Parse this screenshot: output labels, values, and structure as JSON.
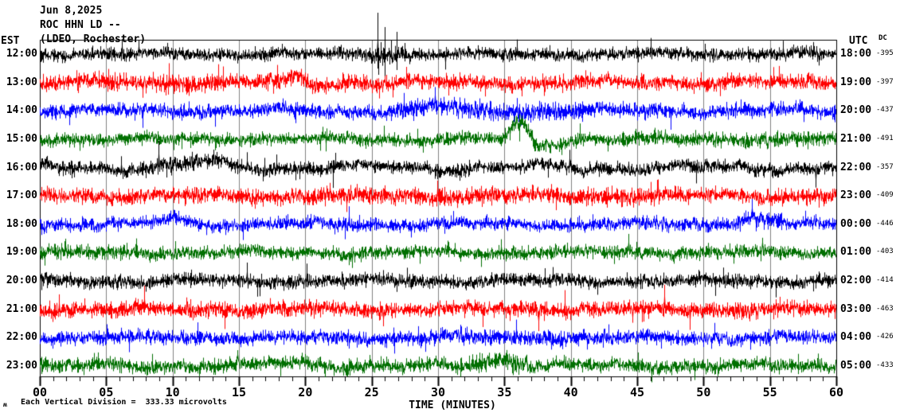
{
  "header": {
    "date": "Jun 8,2025",
    "station": "ROC HHN LD --",
    "network": "(LDEO, Rochester)",
    "left_tz": "EST",
    "right_tz": "UTC",
    "dc_header": "DC"
  },
  "footer": {
    "scale_note": "Each Vertical Division =  333.33 microvolts",
    "corner_mark": "ʍ"
  },
  "chart_data": {
    "type": "line",
    "kind": "seismogram-helicorder",
    "title": "ROC HHN LD -- (LDEO, Rochester) Jun 8,2025",
    "xaxis": {
      "min": 0,
      "max": 60,
      "major_step": 5,
      "minor_step": 1,
      "title": "TIME (MINUTES)",
      "tick_labels": [
        "00",
        "05",
        "10",
        "15",
        "20",
        "25",
        "30",
        "35",
        "40",
        "45",
        "50",
        "55",
        "60"
      ]
    },
    "grid": true,
    "grid_color": "#808080",
    "border_color": "#000000",
    "trace_color_cycle": [
      "#000000",
      "#ff0000",
      "#0000ff",
      "#006f00"
    ],
    "rows": [
      {
        "est": "12:00",
        "utc": "18:00",
        "dc": "-395",
        "color": "#000000",
        "amp": 5.2,
        "wander": 1.5,
        "bursts": [
          [
            25,
            27.8,
            1.35
          ]
        ],
        "bumps": [],
        "spikes": [
          [
            16.2,
            10
          ],
          [
            25.45,
            52
          ],
          [
            25.5,
            -26
          ],
          [
            25.95,
            34
          ],
          [
            26.0,
            -30
          ],
          [
            26.45,
            18
          ],
          [
            26.85,
            28
          ],
          [
            26.9,
            -20
          ],
          [
            27.45,
            14
          ]
        ]
      },
      {
        "est": "13:00",
        "utc": "19:00",
        "dc": "-397",
        "color": "#ff0000",
        "amp": 6.0,
        "wander": 2.0,
        "bursts": [
          [
            0,
            15,
            1.2
          ],
          [
            17,
            20,
            1.25
          ]
        ],
        "bumps": [
          [
            19.4,
            11,
            0.5
          ],
          [
            20.8,
            -4,
            0.9
          ]
        ],
        "spikes": [
          [
            18.9,
            14
          ],
          [
            19.7,
            12
          ]
        ]
      },
      {
        "est": "14:00",
        "utc": "20:00",
        "dc": "-437",
        "color": "#0000ff",
        "amp": 5.8,
        "wander": 2.0,
        "bursts": [
          [
            27,
            41,
            1.3
          ]
        ],
        "bumps": [
          [
            29.8,
            5,
            1.2
          ]
        ],
        "spikes": [
          [
            13.2,
            -20
          ],
          [
            34.9,
            10
          ]
        ]
      },
      {
        "est": "15:00",
        "utc": "21:00",
        "dc": "-491",
        "color": "#006f00",
        "amp": 5.2,
        "wander": 1.5,
        "bursts": [
          [
            35.4,
            37.2,
            1.3
          ],
          [
            46,
            60,
            1.15
          ]
        ],
        "bumps": [
          [
            36.15,
            24,
            0.55
          ],
          [
            37.8,
            -7,
            1.3
          ]
        ],
        "spikes": [
          [
            13.2,
            -14
          ],
          [
            36.1,
            8
          ]
        ]
      },
      {
        "est": "16:00",
        "utc": "22:00",
        "dc": "-357",
        "color": "#000000",
        "amp": 5.4,
        "wander": 3.2,
        "bursts": [
          [
            9,
            14,
            1.25
          ]
        ],
        "bumps": [
          [
            12.3,
            6,
            1.4
          ]
        ],
        "spikes": []
      },
      {
        "est": "17:00",
        "utc": "23:00",
        "dc": "-409",
        "color": "#ff0000",
        "amp": 6.4,
        "wander": 1.6,
        "bursts": [
          [
            24,
            46,
            1.12
          ]
        ],
        "bumps": [],
        "spikes": [
          [
            41.3,
            12
          ]
        ]
      },
      {
        "est": "18:00",
        "utc": "00:00",
        "dc": "-446",
        "color": "#0000ff",
        "amp": 5.4,
        "wander": 2.0,
        "bursts": [
          [
            52,
            55.5,
            1.3
          ]
        ],
        "bumps": [
          [
            10,
            7,
            1.0
          ],
          [
            53.6,
            9,
            1.1
          ]
        ],
        "spikes": [
          [
            30.5,
            -12
          ]
        ]
      },
      {
        "est": "19:00",
        "utc": "01:00",
        "dc": "-403",
        "color": "#006f00",
        "amp": 5.4,
        "wander": 1.6,
        "bursts": [
          [
            0,
            9,
            1.12
          ]
        ],
        "bumps": [],
        "spikes": [
          [
            3.5,
            8
          ],
          [
            28.6,
            -14
          ]
        ]
      },
      {
        "est": "20:00",
        "utc": "02:00",
        "dc": "-414",
        "color": "#000000",
        "amp": 5.4,
        "wander": 1.6,
        "bursts": [],
        "bumps": [],
        "spikes": [
          [
            22.8,
            9
          ]
        ]
      },
      {
        "est": "21:00",
        "utc": "03:00",
        "dc": "-463",
        "color": "#ff0000",
        "amp": 6.4,
        "wander": 1.6,
        "bursts": [],
        "bumps": [],
        "spikes": [
          [
            41.8,
            10
          ],
          [
            45.35,
            -16
          ],
          [
            45.85,
            -12
          ]
        ]
      },
      {
        "est": "22:00",
        "utc": "04:00",
        "dc": "-426",
        "color": "#0000ff",
        "amp": 5.8,
        "wander": 1.6,
        "bursts": [
          [
            32,
            40,
            1.2
          ]
        ],
        "bumps": [],
        "spikes": [
          [
            9.3,
            -10
          ],
          [
            26.7,
            -20
          ]
        ]
      },
      {
        "est": "23:00",
        "utc": "05:00",
        "dc": "-433",
        "color": "#006f00",
        "amp": 5.8,
        "wander": 2.0,
        "bursts": [
          [
            33,
            36.5,
            1.25
          ]
        ],
        "bumps": [
          [
            19,
            4,
            1.6
          ],
          [
            34.6,
            9,
            1.3
          ]
        ],
        "spikes": []
      }
    ]
  }
}
